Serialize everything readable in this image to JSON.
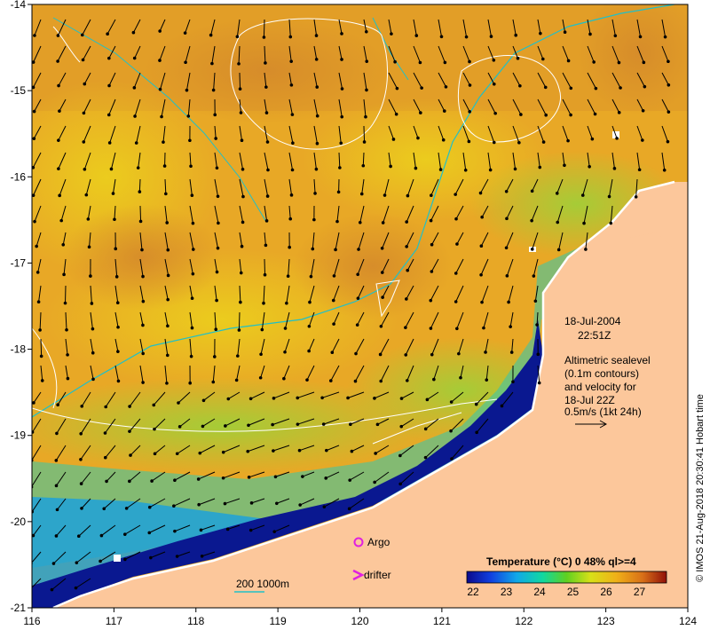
{
  "map": {
    "axes": {
      "lon_ticks": [
        "116",
        "117",
        "118",
        "119",
        "120",
        "121",
        "122",
        "123",
        "124"
      ],
      "lat_ticks": [
        "-14",
        "-15",
        "-16",
        "-17",
        "-18",
        "-19",
        "-20",
        "-21"
      ]
    },
    "annotation": {
      "date": "18-Jul-2004",
      "time": "22:51Z",
      "line1": "Altimetric sealevel",
      "line2": "(0.1m contours)",
      "line3": "and velocity for",
      "line4": "18-Jul 22Z",
      "line5": "0.5m/s (1kt 24h)"
    },
    "legend": {
      "argo_label": "Argo",
      "drifter_label": "drifter",
      "depth_label": "200  1000m",
      "colorbar_title": "Temperature (°C) 0 48% ql>=4",
      "colorbar_ticks": [
        "22",
        "23",
        "24",
        "25",
        "26",
        "27"
      ]
    },
    "copyright": "© IMOS 21-Aug-2018 20:30:41 Hobart time",
    "colors": {
      "land": "#fcc79b",
      "sea_warm": "#e6a020",
      "sea_cool": "#18a8e0",
      "coast_cold": "#0a1890",
      "contour": "#ffffff",
      "isobath": "#20c0c8",
      "argo": "#e020e0",
      "drifter": "#e020e0"
    }
  }
}
